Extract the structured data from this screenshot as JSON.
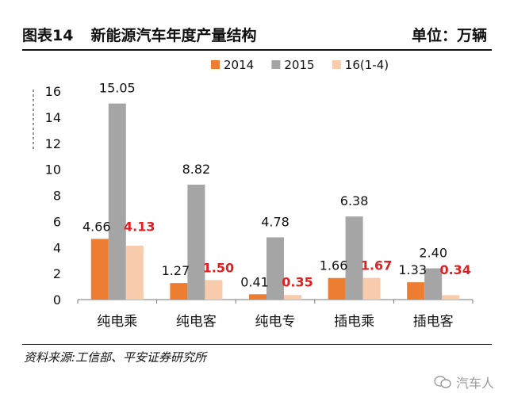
{
  "header": {
    "figure_number": "图表14",
    "title": "新能源汽车年度产量结构",
    "unit": "单位：万辆"
  },
  "source": "资料来源:工信部、平安证券研究所",
  "watermark": "汽车人",
  "chart_data": {
    "type": "bar",
    "categories": [
      "纯电乘",
      "纯电客",
      "纯电专",
      "插电乘",
      "插电客"
    ],
    "series": [
      {
        "name": "2014",
        "values": [
          4.66,
          1.27,
          0.41,
          1.66,
          1.33
        ],
        "labels": [
          "4.66",
          "1.27",
          "0.41",
          "1.66",
          "1.33"
        ],
        "color": "#ED7D31",
        "label_color": "#111111"
      },
      {
        "name": "2015",
        "values": [
          15.05,
          8.82,
          4.78,
          6.38,
          2.4
        ],
        "labels": [
          "15.05",
          "8.82",
          "4.78",
          "6.38",
          "2.40"
        ],
        "color": "#A5A5A5",
        "label_color": "#111111"
      },
      {
        "name": "16(1-4)",
        "values": [
          4.13,
          1.5,
          0.35,
          1.67,
          0.34
        ],
        "labels": [
          "4.13",
          "1.50",
          "0.35",
          "1.67",
          "0.34"
        ],
        "color": "#F8CBAD",
        "label_color": "#E02020"
      }
    ],
    "ylim": [
      0,
      16
    ],
    "yticks": [
      "0",
      "2",
      "4",
      "6",
      "8",
      "10",
      "12",
      "14",
      "16"
    ],
    "legend_position": "top",
    "grid": false
  }
}
